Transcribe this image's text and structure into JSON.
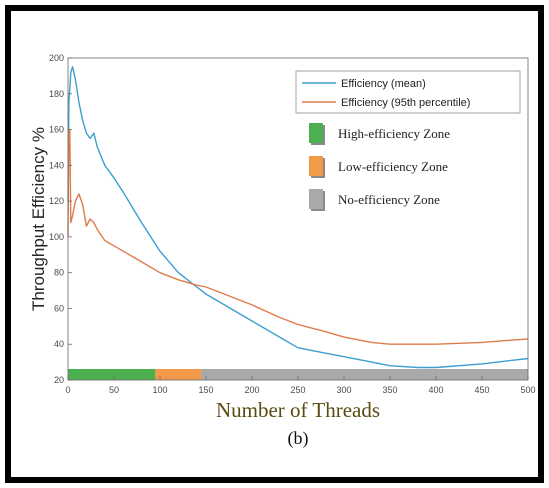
{
  "chart_data": {
    "type": "line",
    "xlabel": "Number of Threads",
    "ylabel": "Throughput Efficiency %",
    "caption": "(b)",
    "xlim": [
      0,
      500
    ],
    "ylim": [
      20,
      200
    ],
    "xticks": [
      0,
      50,
      100,
      150,
      200,
      250,
      300,
      350,
      400,
      450,
      500
    ],
    "yticks": [
      20,
      40,
      60,
      80,
      100,
      120,
      140,
      160,
      180,
      200
    ],
    "grid": false,
    "legend_position": "top-right",
    "series": [
      {
        "name": "Efficiency (mean)",
        "color": "#3c9fd0",
        "x": [
          0,
          1,
          3,
          5,
          8,
          12,
          16,
          20,
          24,
          28,
          32,
          40,
          50,
          60,
          80,
          100,
          120,
          140,
          150,
          170,
          200,
          230,
          250,
          280,
          300,
          330,
          350,
          380,
          400,
          450,
          500
        ],
        "y": [
          120,
          175,
          192,
          195,
          188,
          175,
          165,
          158,
          155,
          158,
          150,
          140,
          133,
          125,
          108,
          92,
          80,
          72,
          68,
          62,
          53,
          44,
          38,
          35,
          33,
          30,
          28,
          27,
          27,
          29,
          32
        ]
      },
      {
        "name": "Efficiency (95th percentile)",
        "color": "#e07b4a",
        "x": [
          0,
          1,
          2,
          3,
          4,
          5,
          8,
          12,
          16,
          20,
          24,
          28,
          32,
          36,
          40,
          50,
          60,
          80,
          100,
          120,
          140,
          150,
          170,
          200,
          230,
          250,
          280,
          300,
          330,
          350,
          380,
          400,
          450,
          500
        ],
        "y": [
          100,
          160,
          160,
          108,
          110,
          112,
          120,
          124,
          118,
          106,
          110,
          108,
          104,
          101,
          98,
          95,
          92,
          86,
          80,
          76,
          73,
          72,
          68,
          62,
          55,
          51,
          47,
          44,
          41,
          40,
          40,
          40,
          41,
          43
        ]
      }
    ],
    "zones": [
      {
        "name": "High-efficiency Zone",
        "color": "#4caf50",
        "x_start": 0,
        "x_end": 95
      },
      {
        "name": "Low-efficiency Zone",
        "color": "#f39a4a",
        "x_start": 95,
        "x_end": 145
      },
      {
        "name": "No-efficiency Zone",
        "color": "#a9a9a9",
        "x_start": 145,
        "x_end": 500
      }
    ]
  }
}
